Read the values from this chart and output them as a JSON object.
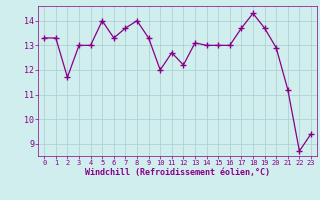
{
  "hours": [
    0,
    1,
    2,
    3,
    4,
    5,
    6,
    7,
    8,
    9,
    10,
    11,
    12,
    13,
    14,
    15,
    16,
    17,
    18,
    19,
    20,
    21,
    22,
    23
  ],
  "values": [
    13.3,
    13.3,
    11.7,
    13.0,
    13.0,
    14.0,
    13.3,
    13.7,
    14.0,
    13.3,
    12.0,
    12.7,
    12.2,
    13.1,
    13.0,
    13.0,
    13.0,
    13.7,
    14.3,
    13.7,
    12.9,
    11.2,
    8.7,
    9.4
  ],
  "line_color": "#880088",
  "marker_color": "#880088",
  "bg_color": "#d0eeee",
  "grid_color": "#aacccc",
  "xlabel": "Windchill (Refroidissement éolien,°C)",
  "xlabel_color": "#880088",
  "tick_color": "#880088",
  "ylim": [
    8.5,
    14.6
  ],
  "yticks": [
    9,
    10,
    11,
    12,
    13,
    14
  ],
  "xticks": [
    0,
    1,
    2,
    3,
    4,
    5,
    6,
    7,
    8,
    9,
    10,
    11,
    12,
    13,
    14,
    15,
    16,
    17,
    18,
    19,
    20,
    21,
    22,
    23
  ]
}
